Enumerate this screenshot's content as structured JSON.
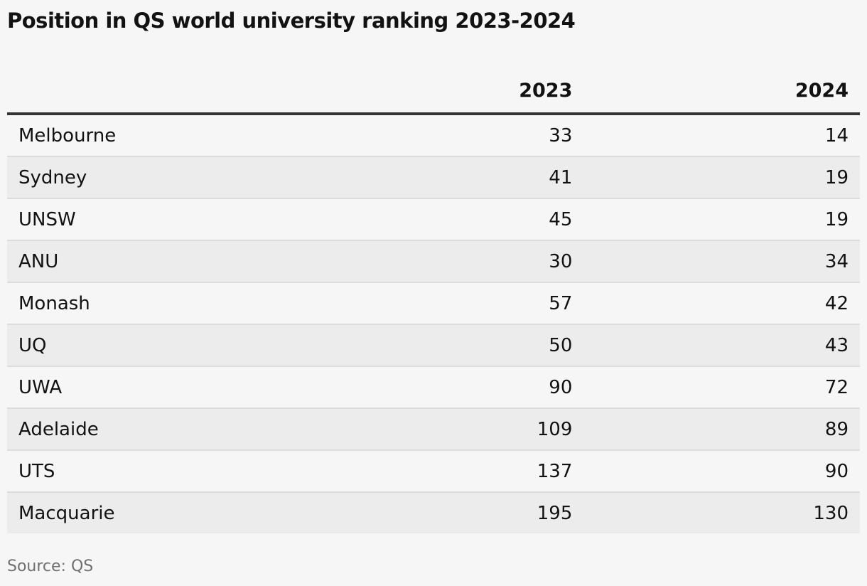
{
  "chart_data": {
    "type": "table",
    "title": "Position in QS world university ranking 2023-2024",
    "columns": [
      "",
      "2023",
      "2024"
    ],
    "rows": [
      {
        "name": "Melbourne",
        "y2023": "33",
        "y2024": "14"
      },
      {
        "name": "Sydney",
        "y2023": "41",
        "y2024": "19"
      },
      {
        "name": "UNSW",
        "y2023": "45",
        "y2024": "19"
      },
      {
        "name": "ANU",
        "y2023": "30",
        "y2024": "34"
      },
      {
        "name": "Monash",
        "y2023": "57",
        "y2024": "42"
      },
      {
        "name": "UQ",
        "y2023": "50",
        "y2024": "43"
      },
      {
        "name": "UWA",
        "y2023": "90",
        "y2024": "72"
      },
      {
        "name": "Adelaide",
        "y2023": "109",
        "y2024": "89"
      },
      {
        "name": "UTS",
        "y2023": "137",
        "y2024": "90"
      },
      {
        "name": "Macquarie",
        "y2023": "195",
        "y2024": "130"
      }
    ],
    "source": "Source: QS"
  },
  "colors": {
    "background": "#f6f6f6",
    "stripe": "#ececec",
    "header_rule": "#333333",
    "row_rule": "#dcdcdc",
    "text": "#121212",
    "source_text": "#707070"
  }
}
